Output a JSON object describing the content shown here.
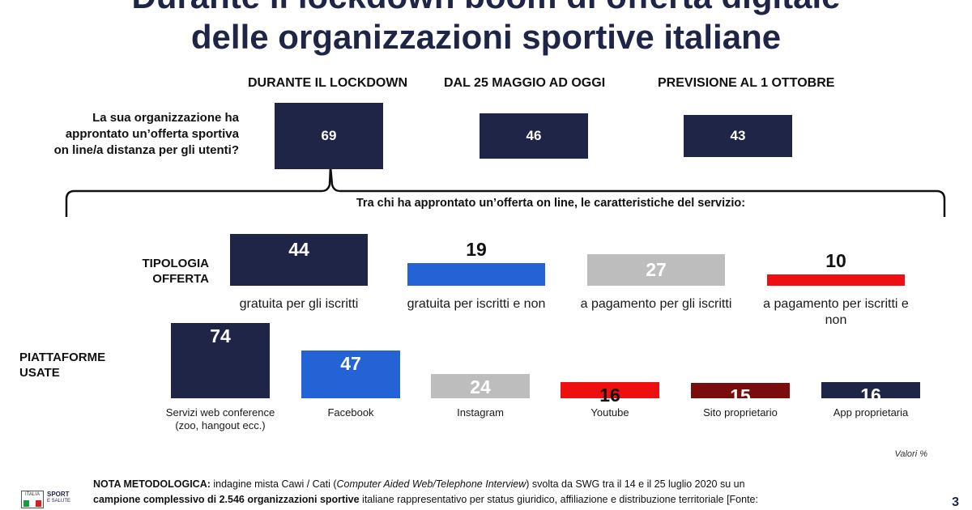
{
  "title": {
    "line1": "Durante il lockdown boom di offerta digitale",
    "line2": "delle organizzazioni sportive italiane"
  },
  "phases": [
    "DURANTE IL LOCKDOWN",
    "DAL 25 MAGGIO AD OGGI",
    "PREVISIONE AL 1 OTTOBRE"
  ],
  "question": "La sua organizzazione ha approntato un’offerta sportiva on line/a distanza per gli utenti?",
  "subtitle": "Tra chi ha approntato un’offerta on line, le caratteristiche del servizio:",
  "row_labels": {
    "tipologia": "TIPOLOGIA OFFERTA",
    "piattaforme": "PIATTAFORME USATE"
  },
  "unit_note": "Valori %",
  "nota": {
    "label": "NOTA METODOLOGICA:",
    "text1": " indagine mista Cawi / Cati (",
    "text_italic": "Computer Aided Web/Telephone Interview",
    "text2": ") svolta da SWG tra il 14 e il 25 luglio 2020 su un",
    "bold2": "campione complessivo di 2.546 organizzazioni sportive",
    "text3": " italiane rappresentativo per status giuridico, affiliazione e distribuzione territoriale [Fonte:"
  },
  "logo": {
    "line1": "ITALIA",
    "line2": "SPORT",
    "line3": "E SALUTE"
  },
  "page_number": "3",
  "colors": {
    "navy": "#1f2547",
    "blue": "#2463d6",
    "grey": "#bdbdbd",
    "red": "#ee1010",
    "darkred": "#7a0c0c"
  },
  "chart_data": [
    {
      "type": "bar",
      "categories": [
        "DURANTE IL LOCKDOWN",
        "DAL 25 MAGGIO AD OGGI",
        "PREVISIONE AL 1 OTTOBRE"
      ],
      "values": [
        69,
        46,
        43
      ],
      "colors": [
        "#1f2547",
        "#1f2547",
        "#1f2547"
      ]
    },
    {
      "type": "bar",
      "categories": [
        "gratuita per gli iscritti",
        "gratuita per iscritti e non",
        "a pagamento per gli iscritti",
        "a pagamento per iscritti e non"
      ],
      "values": [
        44,
        19,
        27,
        10
      ],
      "colors": [
        "#1f2547",
        "#2463d6",
        "#bdbdbd",
        "#ee1010"
      ]
    },
    {
      "type": "bar",
      "categories": [
        "Servizi web conference (zoo, hangout ecc.)",
        "Facebook",
        "Instagram",
        "Youtube",
        "Sito proprietario",
        "App proprietaria"
      ],
      "values": [
        74,
        47,
        24,
        16,
        15,
        16
      ],
      "colors": [
        "#1f2547",
        "#2463d6",
        "#bdbdbd",
        "#ee1010",
        "#7a0c0c",
        "#1f2547"
      ]
    }
  ]
}
